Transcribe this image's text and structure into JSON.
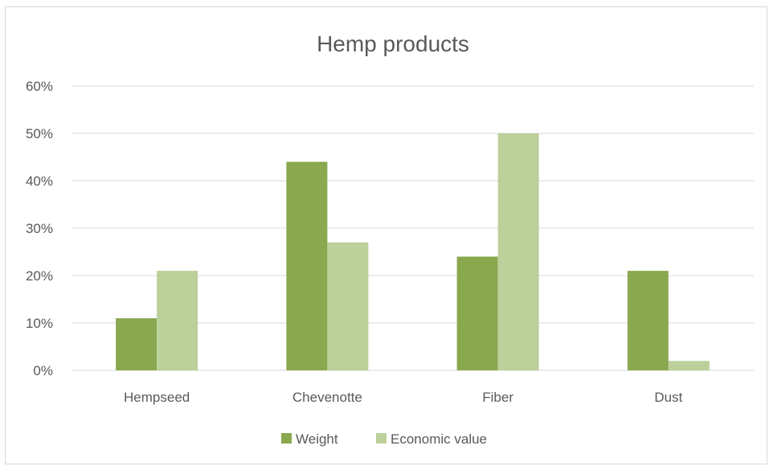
{
  "chart_data": {
    "type": "bar",
    "title": "Hemp products",
    "categories": [
      "Hempseed",
      "Chevenotte",
      "Fiber",
      "Dust"
    ],
    "series": [
      {
        "name": "Weight",
        "values": [
          11,
          44,
          24,
          21
        ],
        "color": "#8aa84e"
      },
      {
        "name": "Economic value",
        "values": [
          21,
          27,
          50,
          2
        ],
        "color": "#bbd09a"
      }
    ],
    "ylim": [
      0,
      60
    ],
    "yticks": [
      "0%",
      "10%",
      "20%",
      "30%",
      "40%",
      "50%",
      "60%"
    ],
    "grid": true,
    "legend_position": "bottom",
    "gridline_color": "#d9d9d9"
  }
}
